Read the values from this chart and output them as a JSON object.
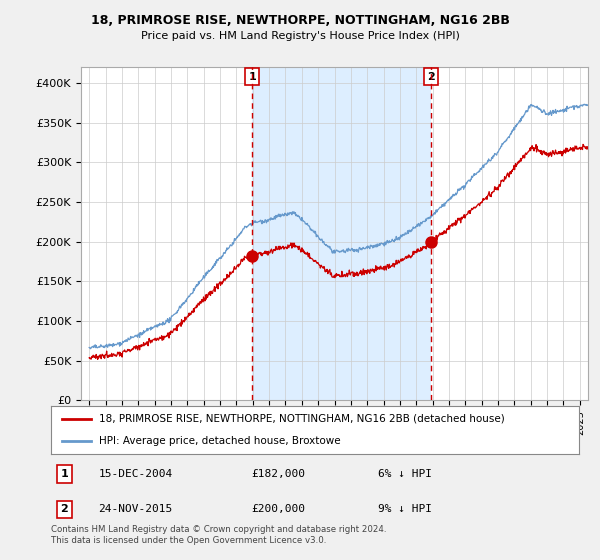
{
  "title": "18, PRIMROSE RISE, NEWTHORPE, NOTTINGHAM, NG16 2BB",
  "subtitle": "Price paid vs. HM Land Registry's House Price Index (HPI)",
  "ylabel_ticks": [
    "£0",
    "£50K",
    "£100K",
    "£150K",
    "£200K",
    "£250K",
    "£300K",
    "£350K",
    "£400K"
  ],
  "ytick_values": [
    0,
    50000,
    100000,
    150000,
    200000,
    250000,
    300000,
    350000,
    400000
  ],
  "ylim": [
    0,
    420000
  ],
  "xlim_start": 1994.5,
  "xlim_end": 2025.5,
  "hpi_color": "#6699cc",
  "price_color": "#cc0000",
  "marker1_date": 2004.96,
  "marker1_price": 182000,
  "marker2_date": 2015.9,
  "marker2_price": 200000,
  "shaded_color": "#ddeeff",
  "legend_line1": "18, PRIMROSE RISE, NEWTHORPE, NOTTINGHAM, NG16 2BB (detached house)",
  "legend_line2": "HPI: Average price, detached house, Broxtowe",
  "footnote": "Contains HM Land Registry data © Crown copyright and database right 2024.\nThis data is licensed under the Open Government Licence v3.0.",
  "bg_color": "#f0f0f0",
  "plot_bg_color": "#ffffff",
  "grid_color": "#cccccc"
}
